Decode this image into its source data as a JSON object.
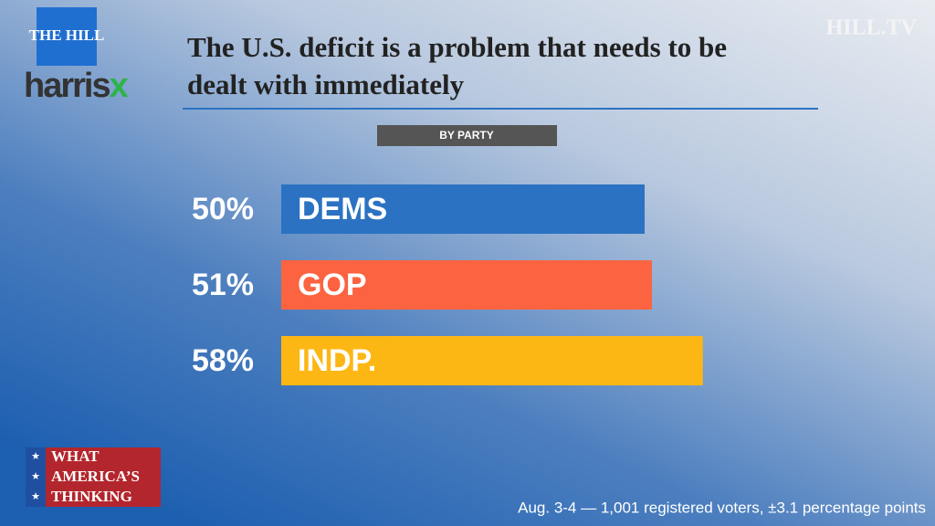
{
  "chart_data": {
    "type": "bar",
    "title": "The U.S. deficit is a problem that needs to be dealt with immediately",
    "subtitle": "BY PARTY",
    "categories": [
      "DEMS",
      "GOP",
      "INDP."
    ],
    "values": [
      50,
      51,
      58
    ],
    "value_labels": [
      "50%",
      "51%",
      "58%"
    ],
    "colors": [
      "#2b72c2",
      "#fb6341",
      "#fdb714"
    ],
    "footnote": "Aug. 3-4 — 1,001 registered voters, ±3.1 percentage points"
  },
  "branding": {
    "hill": "THE HILL",
    "harris": "harris",
    "x": "x",
    "tv": "HILL.TV",
    "segment": [
      "WHAT",
      "AMERICA’S",
      "THINKING"
    ]
  }
}
